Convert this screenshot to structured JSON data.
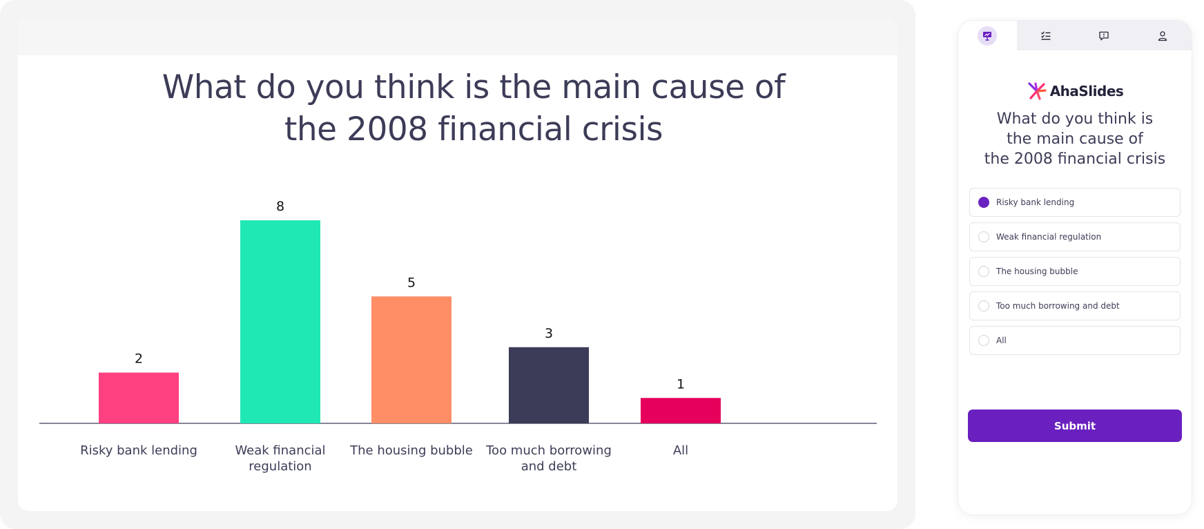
{
  "slide": {
    "title_line1": "What do you think is the main cause of",
    "title_line2": "the 2008 financial crisis"
  },
  "chart_data": {
    "type": "bar",
    "categories": [
      [
        "Risky bank lending"
      ],
      [
        "Weak financial",
        "regulation"
      ],
      [
        "The housing bubble"
      ],
      [
        "Too much borrowing",
        "and debt"
      ],
      [
        "All"
      ]
    ],
    "values": [
      2,
      8,
      5,
      3,
      1
    ],
    "colors": [
      "#ff4081",
      "#20e8b4",
      "#ff8d66",
      "#3c3c58",
      "#e6005c"
    ],
    "title": "What do you think is the main cause of the 2008 financial crisis",
    "xlabel": "",
    "ylabel": "",
    "grid": false,
    "legend": "none"
  },
  "phone": {
    "tabs": [
      {
        "icon": "presentation-icon",
        "active": true
      },
      {
        "icon": "checklist-icon",
        "active": false
      },
      {
        "icon": "chat-icon",
        "active": false
      },
      {
        "icon": "user-icon",
        "active": false
      }
    ],
    "logo_text": "AhaSlides",
    "question_line1": "What do you think is",
    "question_line2": "the main cause of",
    "question_line3": "the 2008 financial crisis",
    "options": [
      {
        "label": "Risky bank lending",
        "selected": true
      },
      {
        "label": "Weak financial regulation",
        "selected": false
      },
      {
        "label": "The housing bubble",
        "selected": false
      },
      {
        "label": "Too much borrowing and debt",
        "selected": false
      },
      {
        "label": "All",
        "selected": false
      }
    ],
    "submit_label": "Submit",
    "accent": "#6a1fbf"
  }
}
